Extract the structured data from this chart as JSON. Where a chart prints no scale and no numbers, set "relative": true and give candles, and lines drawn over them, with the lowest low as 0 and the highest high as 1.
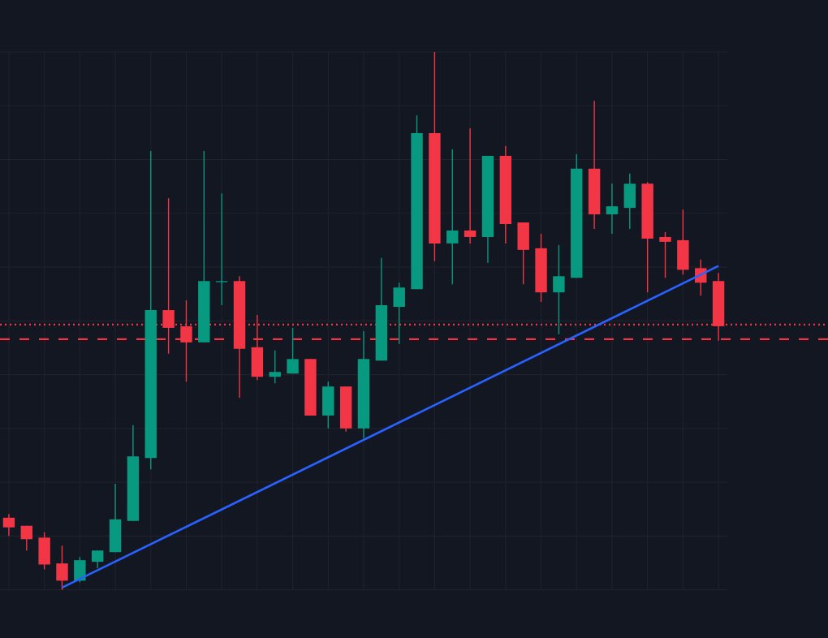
{
  "chart_data": {
    "type": "candlestick",
    "relative": true,
    "grid": true,
    "categories": [
      null,
      null,
      null,
      null,
      null,
      null,
      null,
      null,
      null,
      null,
      null,
      null,
      null,
      null,
      null,
      null,
      null,
      null,
      null,
      null,
      null,
      null,
      null,
      null,
      null,
      null,
      null,
      null,
      null,
      null,
      null,
      null,
      null,
      null,
      null,
      null,
      null,
      null,
      null,
      null,
      null
    ],
    "ohlc": [
      [
        0.134,
        0.141,
        0.1,
        0.116
      ],
      [
        0.119,
        0.119,
        0.073,
        0.094
      ],
      [
        0.097,
        0.107,
        0.038,
        0.047
      ],
      [
        0.049,
        0.082,
        0.0,
        0.017
      ],
      [
        0.017,
        0.061,
        0.014,
        0.055
      ],
      [
        0.052,
        0.073,
        0.04,
        0.073
      ],
      [
        0.07,
        0.197,
        0.07,
        0.131
      ],
      [
        0.128,
        0.306,
        0.128,
        0.248
      ],
      [
        0.245,
        0.816,
        0.224,
        0.52
      ],
      [
        0.52,
        0.728,
        0.439,
        0.487
      ],
      [
        0.49,
        0.538,
        0.387,
        0.46
      ],
      [
        0.46,
        0.816,
        0.46,
        0.574
      ],
      [
        0.572,
        0.737,
        0.529,
        0.574
      ],
      [
        0.574,
        0.583,
        0.357,
        0.448
      ],
      [
        0.451,
        0.511,
        0.39,
        0.396
      ],
      [
        0.396,
        0.445,
        0.384,
        0.405
      ],
      [
        0.402,
        0.487,
        0.402,
        0.429
      ],
      [
        0.429,
        0.429,
        0.324,
        0.324
      ],
      [
        0.324,
        0.387,
        0.3,
        0.378
      ],
      [
        0.378,
        0.378,
        0.294,
        0.3
      ],
      [
        0.3,
        0.481,
        0.282,
        0.429
      ],
      [
        0.426,
        0.617,
        0.426,
        0.529
      ],
      [
        0.526,
        0.571,
        0.457,
        0.562
      ],
      [
        0.559,
        0.882,
        0.559,
        0.849
      ],
      [
        0.849,
        1.0,
        0.611,
        0.644
      ],
      [
        0.644,
        0.819,
        0.568,
        0.668
      ],
      [
        0.668,
        0.858,
        0.644,
        0.656
      ],
      [
        0.656,
        0.807,
        0.608,
        0.807
      ],
      [
        0.807,
        0.825,
        0.644,
        0.68
      ],
      [
        0.683,
        0.683,
        0.568,
        0.632
      ],
      [
        0.635,
        0.662,
        0.535,
        0.553
      ],
      [
        0.553,
        0.641,
        0.475,
        0.583
      ],
      [
        0.58,
        0.81,
        0.58,
        0.783
      ],
      [
        0.783,
        0.909,
        0.671,
        0.698
      ],
      [
        0.698,
        0.755,
        0.662,
        0.713
      ],
      [
        0.71,
        0.774,
        0.671,
        0.755
      ],
      [
        0.755,
        0.758,
        0.553,
        0.653
      ],
      [
        0.656,
        0.665,
        0.58,
        0.647
      ],
      [
        0.65,
        0.707,
        0.586,
        0.595
      ],
      [
        0.598,
        0.614,
        0.547,
        0.571
      ],
      [
        0.574,
        0.589,
        0.463,
        0.49
      ]
    ],
    "colors": [
      "#f23645",
      "#f23645",
      "#f23645",
      "#f23645",
      "#089981",
      "#089981",
      "#089981",
      "#089981",
      "#089981",
      "#f23645",
      "#f23645",
      "#089981",
      "#089981",
      "#f23645",
      "#f23645",
      "#089981",
      "#089981",
      "#f23645",
      "#089981",
      "#f23645",
      "#089981",
      "#089981",
      "#089981",
      "#089981",
      "#f23645",
      "#089981",
      "#f23645",
      "#089981",
      "#f23645",
      "#f23645",
      "#f23645",
      "#089981",
      "#089981",
      "#f23645",
      "#089981",
      "#089981",
      "#f23645",
      "#f23645",
      "#f23645",
      "#f23645",
      "#f23645"
    ],
    "series": [
      {
        "type": "line",
        "values": [
          null,
          null,
          null,
          0.004,
          null,
          null,
          null,
          null,
          null,
          null,
          null,
          null,
          null,
          null,
          null,
          null,
          null,
          null,
          null,
          null,
          null,
          null,
          null,
          null,
          null,
          null,
          null,
          null,
          null,
          null,
          null,
          null,
          null,
          null,
          null,
          null,
          null,
          null,
          null,
          null,
          0.602
        ],
        "color": "#2962ff",
        "marker": "none",
        "line_style": "solid"
      }
    ],
    "ref_lines": [
      {
        "axis": "y",
        "value": 0.493,
        "color": "#f23645",
        "line_style": "dotted"
      },
      {
        "axis": "y",
        "value": 0.466,
        "color": "#f23645",
        "line_style": "dashed"
      }
    ]
  }
}
